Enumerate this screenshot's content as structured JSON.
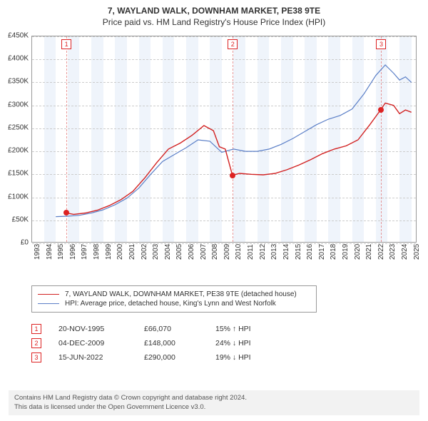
{
  "title": "7, WAYLAND WALK, DOWNHAM MARKET, PE38 9TE",
  "subtitle": "Price paid vs. HM Land Registry's House Price Index (HPI)",
  "chart": {
    "type": "line",
    "background_color": "#ffffff",
    "grid_color": "#cccccc",
    "band_color": "#e8f0fa",
    "axis_color": "#999999",
    "x_range": [
      1993,
      2025.5
    ],
    "y_range": [
      0,
      450000
    ],
    "y_ticks": [
      0,
      50000,
      100000,
      150000,
      200000,
      250000,
      300000,
      350000,
      400000,
      450000
    ],
    "y_labels": [
      "£0",
      "£50K",
      "£100K",
      "£150K",
      "£200K",
      "£250K",
      "£300K",
      "£350K",
      "£400K",
      "£450K"
    ],
    "x_ticks": [
      1993,
      1994,
      1995,
      1996,
      1997,
      1998,
      1999,
      2000,
      2001,
      2002,
      2003,
      2004,
      2005,
      2006,
      2007,
      2008,
      2009,
      2010,
      2011,
      2012,
      2013,
      2014,
      2015,
      2016,
      2017,
      2018,
      2019,
      2020,
      2021,
      2022,
      2023,
      2024,
      2025
    ],
    "x_labels": [
      "1993",
      "1994",
      "1995",
      "1996",
      "1997",
      "1998",
      "1999",
      "2000",
      "2001",
      "2002",
      "2003",
      "2004",
      "2005",
      "2006",
      "2007",
      "2008",
      "2009",
      "2010",
      "2011",
      "2012",
      "2013",
      "2014",
      "2015",
      "2016",
      "2017",
      "2018",
      "2019",
      "2020",
      "2021",
      "2022",
      "2023",
      "2024",
      "2025"
    ],
    "series_property": {
      "label": "7, WAYLAND WALK, DOWNHAM MARKET, PE38 9TE (detached house)",
      "color": "#d22222",
      "width": 1.4,
      "points": [
        [
          1995.9,
          66070
        ],
        [
          1996.5,
          63000
        ],
        [
          1997.5,
          66000
        ],
        [
          1998.5,
          72000
        ],
        [
          1999.5,
          82000
        ],
        [
          2000.5,
          95000
        ],
        [
          2001.5,
          113000
        ],
        [
          2002.5,
          142000
        ],
        [
          2003.5,
          175000
        ],
        [
          2004.5,
          205000
        ],
        [
          2005.5,
          218000
        ],
        [
          2006.5,
          235000
        ],
        [
          2007.5,
          256000
        ],
        [
          2008.3,
          245000
        ],
        [
          2008.8,
          210000
        ],
        [
          2009.3,
          205000
        ],
        [
          2009.9,
          148000
        ],
        [
          2010.5,
          152000
        ],
        [
          2011.5,
          150000
        ],
        [
          2012.5,
          149000
        ],
        [
          2013.5,
          152000
        ],
        [
          2014.5,
          160000
        ],
        [
          2015.5,
          170000
        ],
        [
          2016.5,
          182000
        ],
        [
          2017.5,
          195000
        ],
        [
          2018.5,
          205000
        ],
        [
          2019.5,
          212000
        ],
        [
          2020.5,
          225000
        ],
        [
          2021.5,
          258000
        ],
        [
          2022.4,
          290000
        ],
        [
          2022.8,
          305000
        ],
        [
          2023.5,
          300000
        ],
        [
          2024.0,
          282000
        ],
        [
          2024.5,
          290000
        ],
        [
          2025.0,
          285000
        ]
      ]
    },
    "series_hpi": {
      "label": "HPI: Average price, detached house, King's Lynn and West Norfolk",
      "color": "#5b7fc7",
      "width": 1.2,
      "points": [
        [
          1995.0,
          58000
        ],
        [
          1996.0,
          59000
        ],
        [
          1997.0,
          61000
        ],
        [
          1998.0,
          66000
        ],
        [
          1999.0,
          73000
        ],
        [
          2000.0,
          84000
        ],
        [
          2001.0,
          98000
        ],
        [
          2002.0,
          120000
        ],
        [
          2003.0,
          150000
        ],
        [
          2004.0,
          178000
        ],
        [
          2005.0,
          193000
        ],
        [
          2006.0,
          208000
        ],
        [
          2007.0,
          225000
        ],
        [
          2008.0,
          222000
        ],
        [
          2009.0,
          198000
        ],
        [
          2010.0,
          205000
        ],
        [
          2011.0,
          200000
        ],
        [
          2012.0,
          200000
        ],
        [
          2013.0,
          205000
        ],
        [
          2014.0,
          215000
        ],
        [
          2015.0,
          228000
        ],
        [
          2016.0,
          243000
        ],
        [
          2017.0,
          258000
        ],
        [
          2018.0,
          270000
        ],
        [
          2019.0,
          278000
        ],
        [
          2020.0,
          292000
        ],
        [
          2021.0,
          325000
        ],
        [
          2022.0,
          365000
        ],
        [
          2022.8,
          388000
        ],
        [
          2023.5,
          370000
        ],
        [
          2024.0,
          355000
        ],
        [
          2024.5,
          362000
        ],
        [
          2025.0,
          350000
        ]
      ]
    },
    "sale_markers": [
      {
        "n": "1",
        "x": 1995.9,
        "y": 66070
      },
      {
        "n": "2",
        "x": 2009.93,
        "y": 148000
      },
      {
        "n": "3",
        "x": 2022.46,
        "y": 290000
      }
    ]
  },
  "legend": {
    "rows": [
      {
        "color": "#d22222",
        "label": "7, WAYLAND WALK, DOWNHAM MARKET, PE38 9TE (detached house)"
      },
      {
        "color": "#5b7fc7",
        "label": "HPI: Average price, detached house, King's Lynn and West Norfolk"
      }
    ]
  },
  "sales": [
    {
      "n": "1",
      "date": "20-NOV-1995",
      "price": "£66,070",
      "delta": "15% ↑ HPI"
    },
    {
      "n": "2",
      "date": "04-DEC-2009",
      "price": "£148,000",
      "delta": "24% ↓ HPI"
    },
    {
      "n": "3",
      "date": "15-JUN-2022",
      "price": "£290,000",
      "delta": "19% ↓ HPI"
    }
  ],
  "footer_line1": "Contains HM Land Registry data © Crown copyright and database right 2024.",
  "footer_line2": "This data is licensed under the Open Government Licence v3.0."
}
